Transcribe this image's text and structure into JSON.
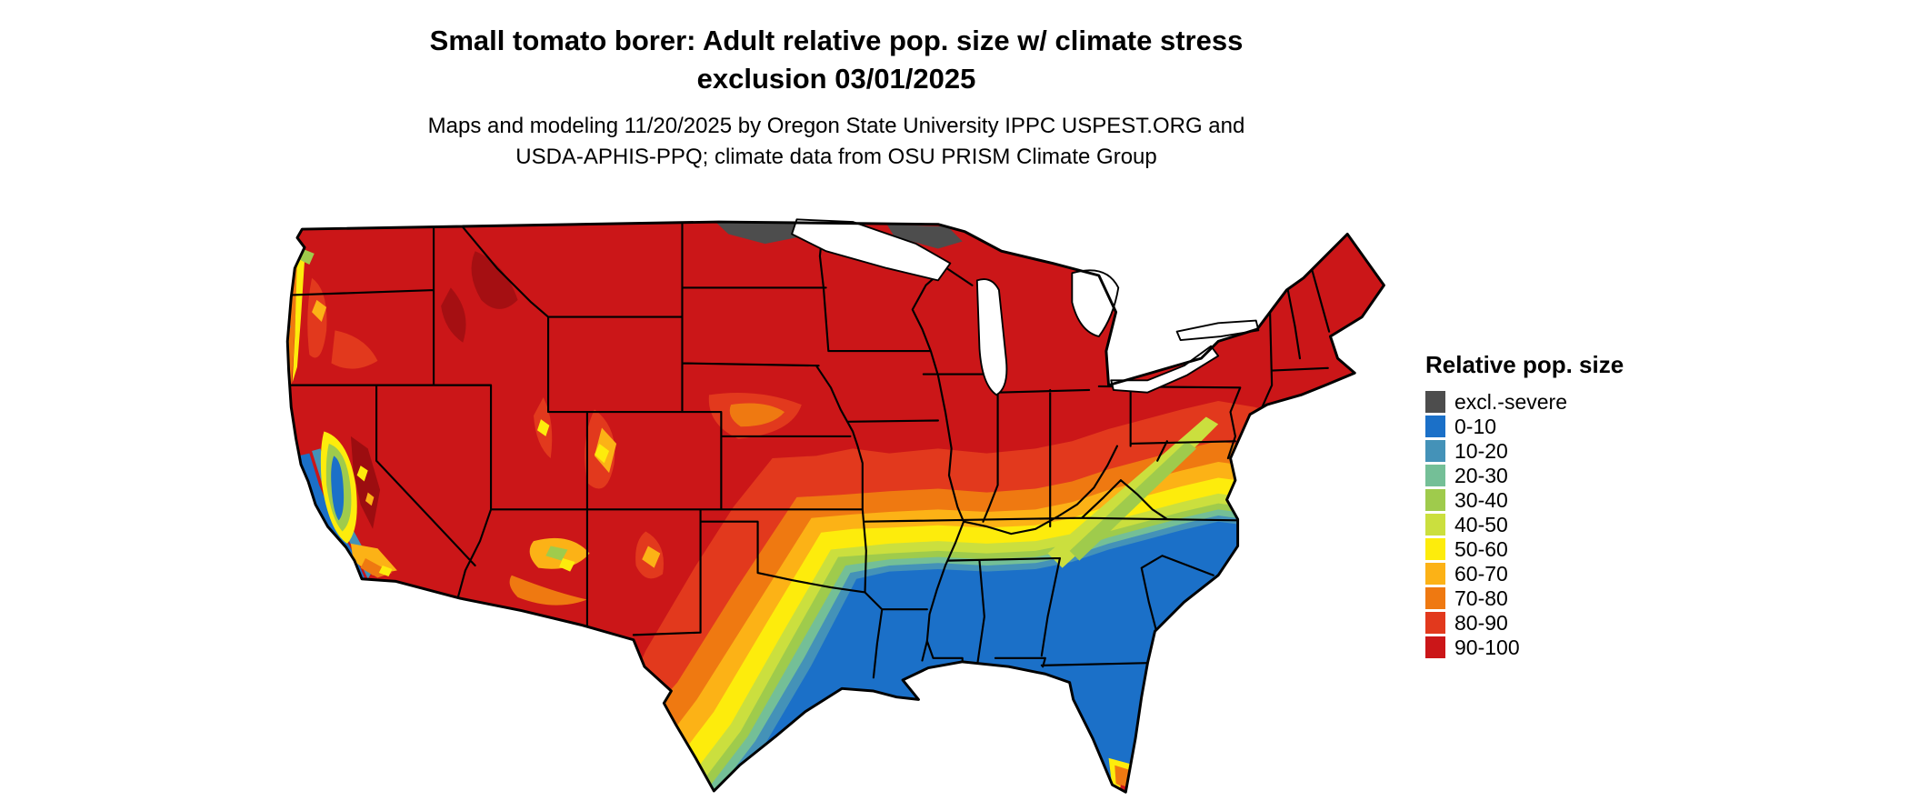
{
  "title": {
    "line1": "Small tomato borer: Adult relative pop. size w/ climate stress",
    "line2": "exclusion 03/01/2025"
  },
  "subtitle": {
    "line1": "Maps and modeling 11/20/2025 by Oregon State University IPPC USPEST.ORG and",
    "line2": "USDA-APHIS-PPQ; climate data from OSU PRISM Climate Group"
  },
  "map": {
    "area": "Contiguous United States",
    "kind": "raster choropleth of relative population size"
  },
  "legend": {
    "title": "Relative pop. size",
    "items": [
      {
        "label": "excl.-severe",
        "color": "#4d4d4d"
      },
      {
        "label": "0-10",
        "color": "#1b70c8"
      },
      {
        "label": "10-20",
        "color": "#4492b8"
      },
      {
        "label": "20-30",
        "color": "#74bf97"
      },
      {
        "label": "30-40",
        "color": "#9fcb4c"
      },
      {
        "label": "40-50",
        "color": "#cbdf3e"
      },
      {
        "label": "50-60",
        "color": "#fdec0c"
      },
      {
        "label": "60-70",
        "color": "#fcb216"
      },
      {
        "label": "70-80",
        "color": "#ef7911"
      },
      {
        "label": "80-90",
        "color": "#e2391d"
      },
      {
        "label": "90-100",
        "color": "#cb1618"
      }
    ]
  }
}
